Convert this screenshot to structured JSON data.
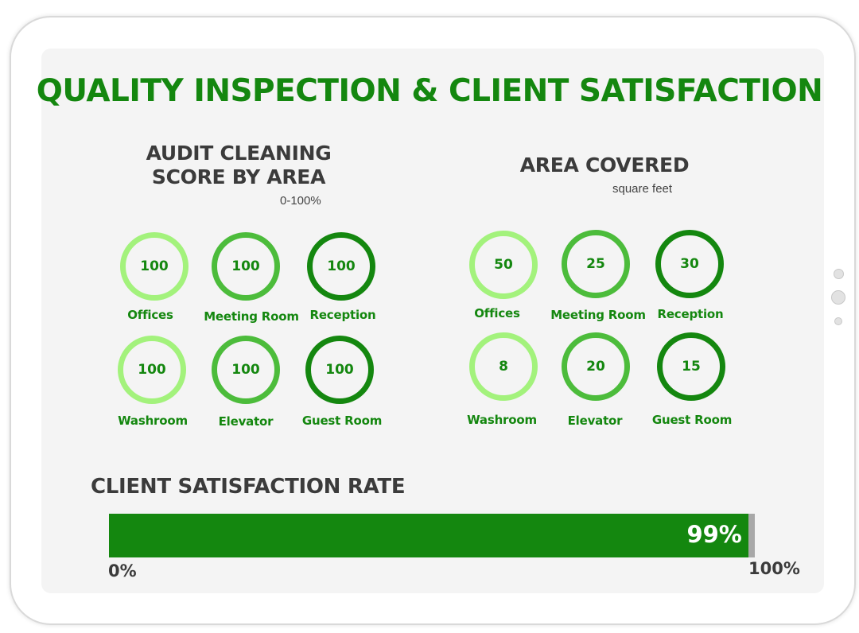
{
  "title": "QUALITY INSPECTION & CLIENT SATISFACTION",
  "colors": {
    "light": "#a3f27c",
    "medium": "#4cbc3b",
    "dark": "#14870f",
    "text_dark": "#3b3b3b",
    "bar_remainder": "#a8a8a8"
  },
  "audit": {
    "title_line1": "AUDIT CLEANING",
    "title_line2": "SCORE BY AREA",
    "subtitle": "0-100%",
    "items": [
      {
        "label": "Offices",
        "value": "100",
        "shade": "light"
      },
      {
        "label": "Meeting Room",
        "value": "100",
        "shade": "medium"
      },
      {
        "label": "Reception",
        "value": "100",
        "shade": "dark"
      },
      {
        "label": "Washroom",
        "value": "100",
        "shade": "light"
      },
      {
        "label": "Elevator",
        "value": "100",
        "shade": "medium"
      },
      {
        "label": "Guest Room",
        "value": "100",
        "shade": "dark"
      }
    ]
  },
  "area": {
    "title": "AREA COVERED",
    "subtitle": "square feet",
    "items": [
      {
        "label": "Offices",
        "value": "50",
        "shade": "light"
      },
      {
        "label": "Meeting Room",
        "value": "25",
        "shade": "medium"
      },
      {
        "label": "Reception",
        "value": "30",
        "shade": "dark"
      },
      {
        "label": "Washroom",
        "value": "8",
        "shade": "light"
      },
      {
        "label": "Elevator",
        "value": "20",
        "shade": "medium"
      },
      {
        "label": "Guest Room",
        "value": "15",
        "shade": "dark"
      }
    ]
  },
  "satisfaction": {
    "title": "CLIENT SATISFACTION RATE",
    "value_label": "99%",
    "axis_min": "0%",
    "axis_max": "100%"
  },
  "chart_data": [
    {
      "type": "table",
      "title": "AUDIT CLEANING SCORE BY AREA",
      "subtitle": "0-100%",
      "categories": [
        "Offices",
        "Meeting Room",
        "Reception",
        "Washroom",
        "Elevator",
        "Guest Room"
      ],
      "values": [
        100,
        100,
        100,
        100,
        100,
        100
      ]
    },
    {
      "type": "table",
      "title": "AREA COVERED",
      "subtitle": "square feet",
      "categories": [
        "Offices",
        "Meeting Room",
        "Reception",
        "Washroom",
        "Elevator",
        "Guest Room"
      ],
      "values": [
        50,
        25,
        30,
        8,
        20,
        15
      ]
    },
    {
      "type": "bar",
      "title": "CLIENT SATISFACTION RATE",
      "categories": [
        "Client satisfaction"
      ],
      "values": [
        99
      ],
      "xlim": [
        0,
        100
      ],
      "tick_labels": [
        "0%",
        "100%"
      ],
      "data_labels": [
        "99%"
      ]
    }
  ]
}
